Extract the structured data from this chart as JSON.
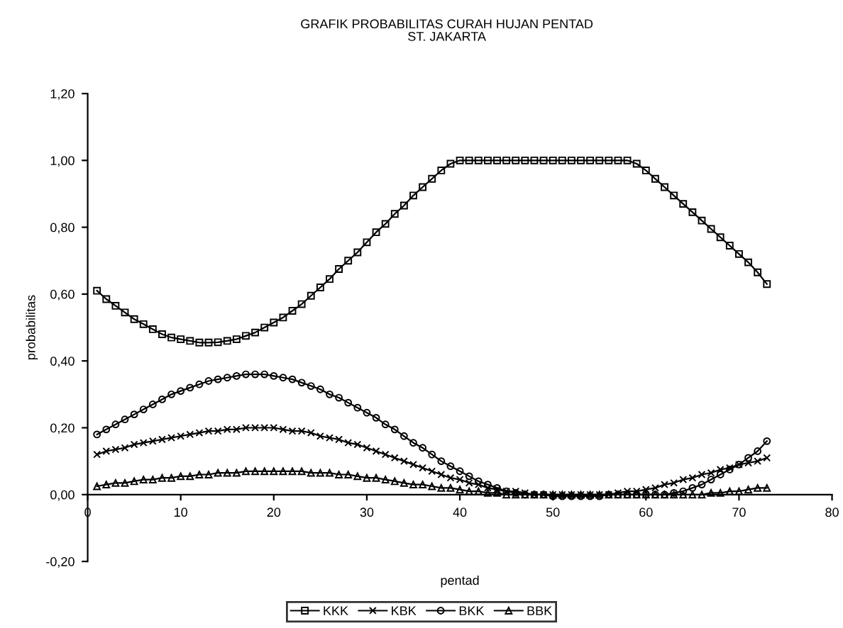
{
  "chart_data": {
    "type": "line",
    "title": "GRAFIK PROBABILITAS CURAH HUJAN PENTAD",
    "subtitle": "ST. JAKARTA",
    "xlabel": "pentad",
    "ylabel": "probabilitas",
    "x": [
      1,
      2,
      3,
      4,
      5,
      6,
      7,
      8,
      9,
      10,
      11,
      12,
      13,
      14,
      15,
      16,
      17,
      18,
      19,
      20,
      21,
      22,
      23,
      24,
      25,
      26,
      27,
      28,
      29,
      30,
      31,
      32,
      33,
      34,
      35,
      36,
      37,
      38,
      39,
      40,
      41,
      42,
      43,
      44,
      45,
      46,
      47,
      48,
      49,
      50,
      51,
      52,
      53,
      54,
      55,
      56,
      57,
      58,
      59,
      60,
      61,
      62,
      63,
      64,
      65,
      66,
      67,
      68,
      69,
      70,
      71,
      72,
      73
    ],
    "series": [
      {
        "name": "KKK",
        "color": "#000000",
        "marker": "square",
        "values": [
          0.61,
          0.585,
          0.565,
          0.545,
          0.525,
          0.51,
          0.495,
          0.48,
          0.47,
          0.465,
          0.46,
          0.455,
          0.455,
          0.456,
          0.46,
          0.465,
          0.475,
          0.485,
          0.5,
          0.515,
          0.53,
          0.55,
          0.57,
          0.595,
          0.62,
          0.645,
          0.675,
          0.7,
          0.725,
          0.755,
          0.785,
          0.81,
          0.84,
          0.865,
          0.895,
          0.92,
          0.945,
          0.97,
          0.99,
          1.0,
          1.0,
          1.0,
          1.0,
          1.0,
          1.0,
          1.0,
          1.0,
          1.0,
          1.0,
          1.0,
          1.0,
          1.0,
          1.0,
          1.0,
          1.0,
          1.0,
          1.0,
          1.0,
          0.99,
          0.97,
          0.945,
          0.92,
          0.895,
          0.87,
          0.845,
          0.82,
          0.795,
          0.77,
          0.745,
          0.72,
          0.695,
          0.665,
          0.63
        ]
      },
      {
        "name": "KBK",
        "color": "#000000",
        "marker": "cross",
        "values": [
          0.12,
          0.13,
          0.135,
          0.14,
          0.15,
          0.155,
          0.16,
          0.165,
          0.17,
          0.175,
          0.18,
          0.185,
          0.19,
          0.19,
          0.195,
          0.195,
          0.2,
          0.2,
          0.2,
          0.2,
          0.195,
          0.19,
          0.19,
          0.185,
          0.175,
          0.17,
          0.165,
          0.155,
          0.15,
          0.14,
          0.13,
          0.12,
          0.11,
          0.1,
          0.09,
          0.08,
          0.07,
          0.06,
          0.05,
          0.045,
          0.035,
          0.03,
          0.02,
          0.015,
          0.01,
          0.01,
          0.005,
          0.0,
          0.0,
          0.0,
          0.0,
          0.0,
          0.0,
          0.0,
          0.0,
          0.0,
          0.005,
          0.01,
          0.01,
          0.015,
          0.02,
          0.03,
          0.035,
          0.045,
          0.05,
          0.06,
          0.065,
          0.075,
          0.08,
          0.09,
          0.095,
          0.1,
          0.11
        ]
      },
      {
        "name": "BKK",
        "color": "#000000",
        "marker": "circle",
        "values": [
          0.18,
          0.195,
          0.21,
          0.225,
          0.24,
          0.255,
          0.27,
          0.285,
          0.3,
          0.31,
          0.32,
          0.33,
          0.34,
          0.345,
          0.35,
          0.355,
          0.36,
          0.36,
          0.36,
          0.355,
          0.35,
          0.345,
          0.335,
          0.325,
          0.315,
          0.3,
          0.29,
          0.275,
          0.26,
          0.245,
          0.23,
          0.21,
          0.195,
          0.175,
          0.155,
          0.14,
          0.12,
          0.1,
          0.085,
          0.07,
          0.055,
          0.04,
          0.03,
          0.02,
          0.01,
          0.005,
          0.0,
          0.0,
          0.0,
          -0.005,
          -0.005,
          -0.005,
          -0.005,
          -0.005,
          -0.005,
          0.0,
          0.0,
          0.0,
          0.0,
          0.0,
          0.0,
          0.0,
          0.005,
          0.01,
          0.02,
          0.03,
          0.045,
          0.06,
          0.075,
          0.09,
          0.11,
          0.13,
          0.16
        ]
      },
      {
        "name": "BBK",
        "color": "#000000",
        "marker": "triangle",
        "values": [
          0.025,
          0.03,
          0.035,
          0.035,
          0.04,
          0.045,
          0.045,
          0.05,
          0.05,
          0.055,
          0.055,
          0.06,
          0.06,
          0.065,
          0.065,
          0.065,
          0.07,
          0.07,
          0.07,
          0.07,
          0.07,
          0.07,
          0.07,
          0.065,
          0.065,
          0.065,
          0.06,
          0.06,
          0.055,
          0.05,
          0.05,
          0.045,
          0.04,
          0.035,
          0.03,
          0.03,
          0.025,
          0.02,
          0.02,
          0.015,
          0.01,
          0.01,
          0.005,
          0.005,
          0.0,
          0.0,
          0.0,
          0.0,
          0.0,
          0.0,
          0.0,
          0.0,
          0.0,
          0.0,
          0.0,
          0.0,
          0.0,
          0.0,
          0.0,
          0.0,
          0.0,
          0.0,
          0.0,
          0.0,
          0.0,
          0.0,
          0.005,
          0.005,
          0.01,
          0.01,
          0.015,
          0.02,
          0.02
        ]
      }
    ],
    "xlim": [
      0,
      80
    ],
    "xticks": [
      0,
      10,
      20,
      30,
      40,
      50,
      60,
      70,
      80
    ],
    "ylim": [
      -0.2,
      1.2
    ],
    "yticks": [
      {
        "value": -0.2,
        "label": "-0,20"
      },
      {
        "value": 0,
        "label": "0,00"
      },
      {
        "value": 0.2,
        "label": "0,20"
      },
      {
        "value": 0.4,
        "label": "0,40"
      },
      {
        "value": 0.6,
        "label": "0,60"
      },
      {
        "value": 0.8,
        "label": "0,80"
      },
      {
        "value": 1.0,
        "label": "1,00"
      },
      {
        "value": 1.2,
        "label": "1,20"
      }
    ],
    "grid": false,
    "legend": "bottom",
    "line_style": "solid"
  }
}
